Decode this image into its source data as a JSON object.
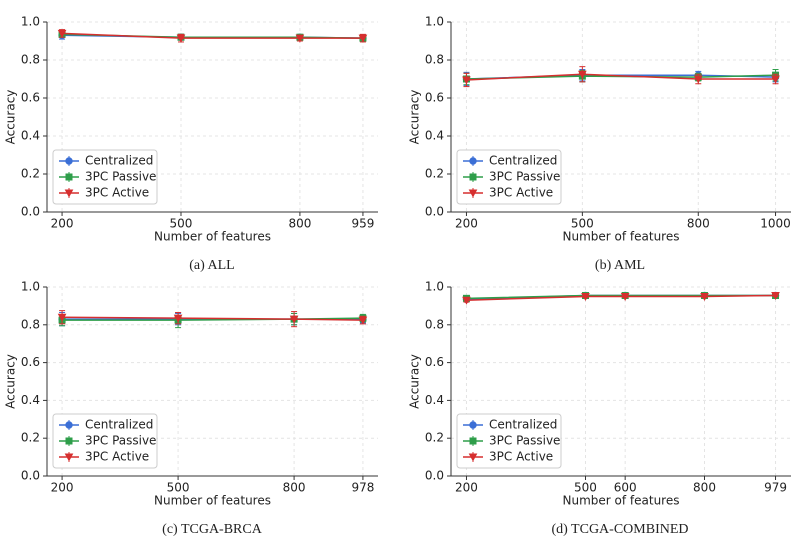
{
  "chart_data": [
    {
      "type": "line",
      "caption": "(a) ALL",
      "xlabel": "Number of features",
      "ylabel": "Accuracy",
      "x": [
        200,
        500,
        800,
        959
      ],
      "xlim": [
        162,
        997
      ],
      "xticks": [
        200,
        500,
        800,
        959
      ],
      "ylim": [
        0,
        1
      ],
      "yticks": [
        {
          "value": 0,
          "label": "0.0"
        },
        0.2,
        0.4,
        0.6,
        0.8,
        {
          "value": 1,
          "label": "1.0"
        }
      ],
      "grid": true,
      "legend": "lower left",
      "series": [
        {
          "name": "Centralized",
          "color": "#3b6fd6",
          "marker": "circle",
          "values": [
            0.93,
            0.92,
            0.92,
            0.915
          ],
          "errors": [
            0.02,
            0.015,
            0.01,
            0.015
          ]
        },
        {
          "name": "3PC Passive",
          "color": "#2e9e4a",
          "marker": "square",
          "values": [
            0.935,
            0.92,
            0.92,
            0.915
          ],
          "errors": [
            0.015,
            0.015,
            0.01,
            0.015
          ]
        },
        {
          "name": "3PC Active",
          "color": "#d62f2f",
          "marker": "triangle",
          "values": [
            0.94,
            0.915,
            0.915,
            0.915
          ],
          "errors": [
            0.02,
            0.02,
            0.015,
            0.02
          ]
        }
      ]
    },
    {
      "type": "line",
      "caption": "(b) AML",
      "xlabel": "Number of features",
      "ylabel": "Accuracy",
      "x": [
        200,
        500,
        800,
        1000
      ],
      "xlim": [
        160,
        1040
      ],
      "xticks": [
        200,
        500,
        800,
        1000
      ],
      "ylim": [
        0,
        1
      ],
      "yticks": [
        {
          "value": 0,
          "label": "0.0"
        },
        0.2,
        0.4,
        0.6,
        0.8,
        {
          "value": 1,
          "label": "1.0"
        }
      ],
      "grid": true,
      "legend": "lower left",
      "series": [
        {
          "name": "Centralized",
          "color": "#3b6fd6",
          "marker": "circle",
          "values": [
            0.7,
            0.72,
            0.72,
            0.71
          ],
          "errors": [
            0.035,
            0.03,
            0.02,
            0.025
          ]
        },
        {
          "name": "3PC Passive",
          "color": "#2e9e4a",
          "marker": "square",
          "values": [
            0.7,
            0.715,
            0.71,
            0.72
          ],
          "errors": [
            0.03,
            0.03,
            0.02,
            0.03
          ]
        },
        {
          "name": "3PC Active",
          "color": "#d62f2f",
          "marker": "triangle",
          "values": [
            0.695,
            0.725,
            0.7,
            0.7
          ],
          "errors": [
            0.035,
            0.04,
            0.025,
            0.025
          ]
        }
      ]
    },
    {
      "type": "line",
      "caption": "(c) TCGA-BRCA",
      "xlabel": "Number of features",
      "ylabel": "Accuracy",
      "x": [
        200,
        500,
        800,
        978
      ],
      "xlim": [
        161,
        1017
      ],
      "xticks": [
        200,
        500,
        800,
        978
      ],
      "ylim": [
        0,
        1
      ],
      "yticks": [
        {
          "value": 0,
          "label": "0.0"
        },
        0.2,
        0.4,
        0.6,
        0.8,
        {
          "value": 1,
          "label": "1.0"
        }
      ],
      "grid": true,
      "legend": "lower left",
      "series": [
        {
          "name": "Centralized",
          "color": "#3b6fd6",
          "marker": "circle",
          "values": [
            0.83,
            0.83,
            0.83,
            0.83
          ],
          "errors": [
            0.035,
            0.03,
            0.03,
            0.02
          ]
        },
        {
          "name": "3PC Passive",
          "color": "#2e9e4a",
          "marker": "square",
          "values": [
            0.825,
            0.825,
            0.83,
            0.835
          ],
          "errors": [
            0.03,
            0.04,
            0.03,
            0.02
          ]
        },
        {
          "name": "3PC Active",
          "color": "#d62f2f",
          "marker": "triangle",
          "values": [
            0.84,
            0.835,
            0.83,
            0.825
          ],
          "errors": [
            0.035,
            0.03,
            0.04,
            0.02
          ]
        }
      ]
    },
    {
      "type": "line",
      "caption": "(d) TCGA-COMBINED",
      "xlabel": "Number of features",
      "ylabel": "Accuracy",
      "x": [
        200,
        500,
        600,
        800,
        979
      ],
      "xlim": [
        161,
        1018
      ],
      "xticks": [
        200,
        500,
        600,
        800,
        979
      ],
      "ylim": [
        0,
        1
      ],
      "yticks": [
        {
          "value": 0,
          "label": "0.0"
        },
        0.2,
        0.4,
        0.6,
        0.8,
        {
          "value": 1,
          "label": "1.0"
        }
      ],
      "grid": true,
      "legend": "lower left",
      "series": [
        {
          "name": "Centralized",
          "color": "#3b6fd6",
          "marker": "circle",
          "values": [
            0.935,
            0.955,
            0.955,
            0.955,
            0.955
          ],
          "errors": [
            0.01,
            0.005,
            0.005,
            0.005,
            0.005
          ]
        },
        {
          "name": "3PC Passive",
          "color": "#2e9e4a",
          "marker": "square",
          "values": [
            0.94,
            0.955,
            0.955,
            0.955,
            0.955
          ],
          "errors": [
            0.01,
            0.005,
            0.005,
            0.005,
            0.005
          ]
        },
        {
          "name": "3PC Active",
          "color": "#d62f2f",
          "marker": "triangle",
          "values": [
            0.93,
            0.95,
            0.95,
            0.95,
            0.955
          ],
          "errors": [
            0.01,
            0.005,
            0.005,
            0.005,
            0.005
          ]
        }
      ]
    }
  ]
}
